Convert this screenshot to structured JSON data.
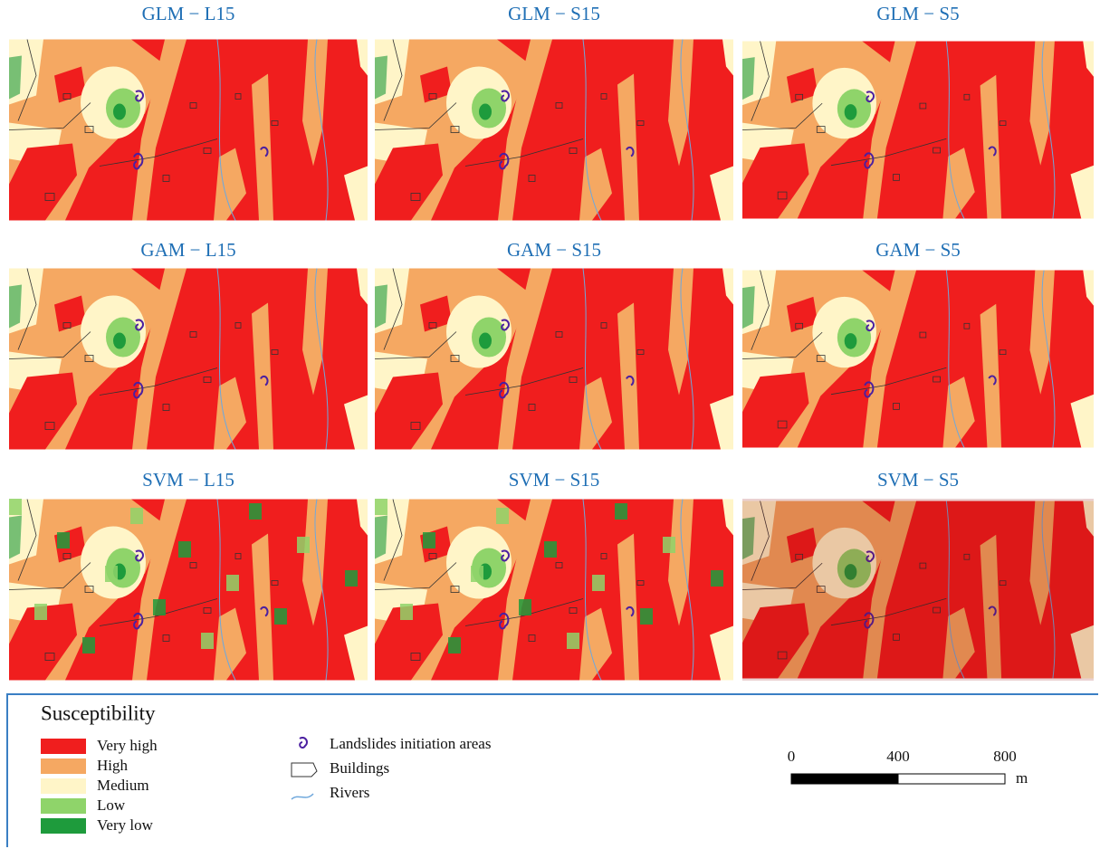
{
  "panels": [
    {
      "title": "GLM − L15"
    },
    {
      "title": "GLM − S15"
    },
    {
      "title": "GLM − S5"
    },
    {
      "title": "GAM − L15"
    },
    {
      "title": "GAM − S15"
    },
    {
      "title": "GAM − S5"
    },
    {
      "title": "SVM − L15"
    },
    {
      "title": "SVM − S15"
    },
    {
      "title": "SVM − S5"
    }
  ],
  "legend": {
    "title": "Susceptibility",
    "classes": [
      {
        "label": "Very high",
        "color": "#f01e1e"
      },
      {
        "label": "High",
        "color": "#f5a862"
      },
      {
        "label": "Medium",
        "color": "#fff5c8"
      },
      {
        "label": "Low",
        "color": "#8fd46a"
      },
      {
        "label": "Very low",
        "color": "#1e9b3c"
      }
    ],
    "symbols": [
      "Landslides initiation areas",
      "Buildings",
      "Rivers"
    ],
    "scale": {
      "ticks": [
        0,
        400,
        800
      ],
      "unit": "m"
    }
  }
}
